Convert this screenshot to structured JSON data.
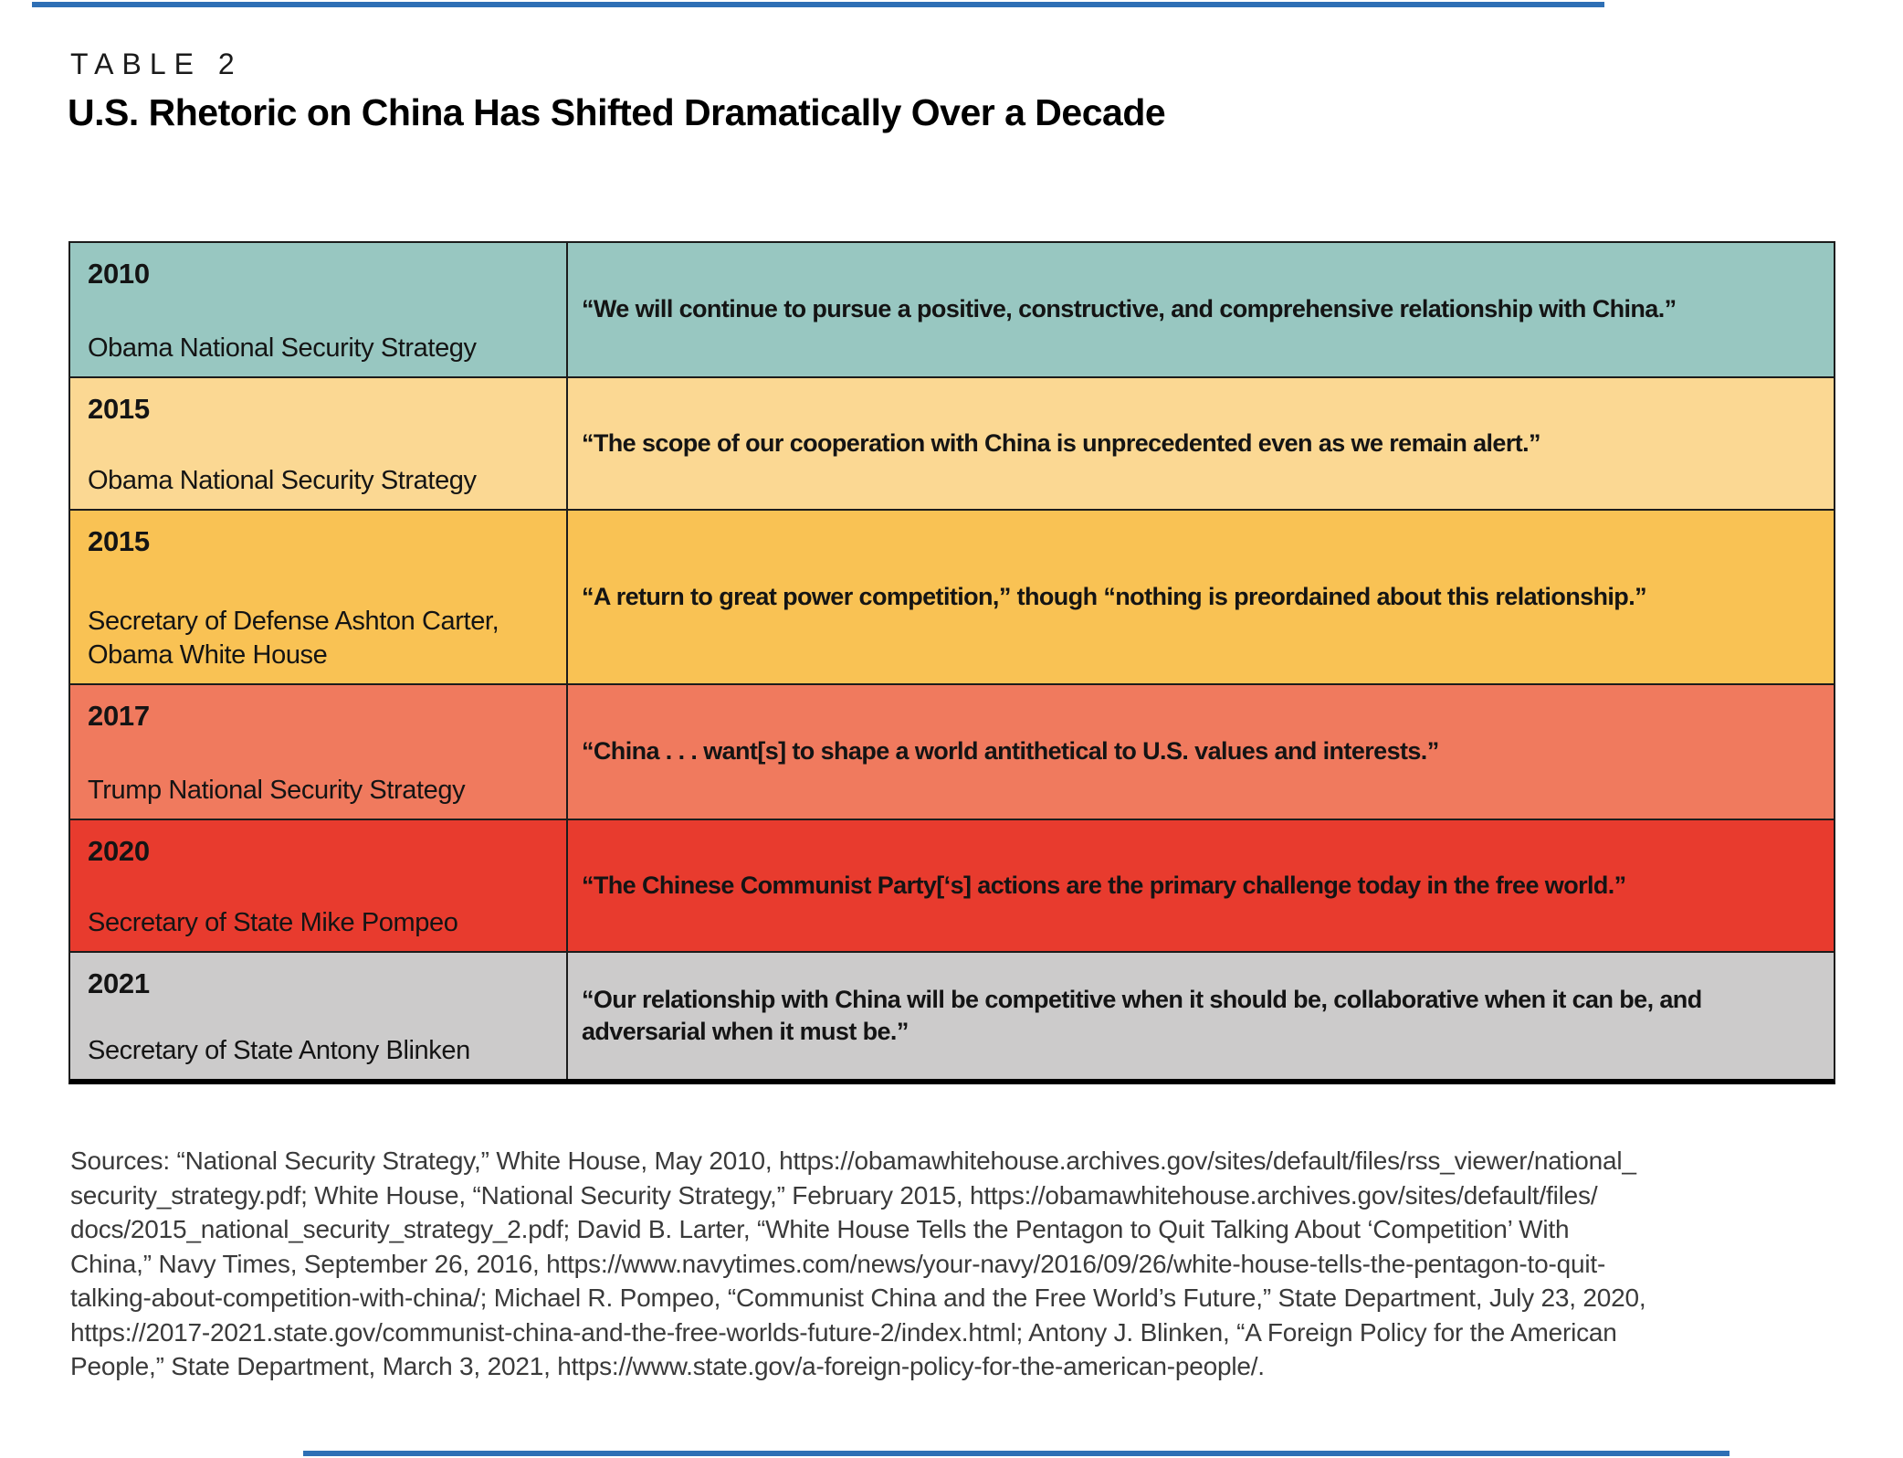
{
  "page": {
    "kicker": "TABLE 2",
    "title": "U.S. Rhetoric on China Has Shifted Dramatically Over a Decade"
  },
  "colors": {
    "rule_blue": "#2e6fb5",
    "border_dark": "#1c1c1c",
    "row_teal": "#98c7c1",
    "row_cream": "#fbd893",
    "row_amber": "#f9c254",
    "row_coral": "#f07a5e",
    "row_red": "#e83b2e",
    "row_gray": "#cccbcb"
  },
  "table": {
    "rows": [
      {
        "year": "2010",
        "source": "Obama National Security Strategy",
        "quote": "“We will continue to pursue a positive, constructive, and comprehensive relationship with China.”",
        "bg": "#98c7c1"
      },
      {
        "year": "2015",
        "source": "Obama National Security Strategy",
        "quote": "“The scope of our cooperation with China is unprecedented even as we remain alert.”",
        "bg": "#fbd893"
      },
      {
        "year": "2015",
        "source": "Secretary of Defense Ashton Carter, Obama White House",
        "quote": "“A return to great power competition,” though “nothing is preordained about this relationship.”",
        "bg": "#f9c254"
      },
      {
        "year": "2017",
        "source": "Trump National Security Strategy",
        "quote": "“China . . . want[s] to shape a world antithetical to U.S. values and interests.”",
        "bg": "#f07a5e"
      },
      {
        "year": "2020",
        "source": "Secretary of State Mike Pompeo",
        "quote": "“The Chinese Communist Party[‘s] actions are the primary challenge today in the free world.”",
        "bg": "#e83b2e"
      },
      {
        "year": "2021",
        "source": "Secretary of State Antony Blinken",
        "quote": "“Our relationship with China will be competitive when it should be, collaborative when it can be, and adversarial when it must be.”",
        "bg": "#cccbcb"
      }
    ]
  },
  "sources": {
    "lines": [
      "Sources: “National Security Strategy,” White House, May 2010, https://obamawhitehouse.archives.gov/sites/default/files/rss_viewer/national_",
      "security_strategy.pdf; White House, “National Security Strategy,” February 2015, https://obamawhitehouse.archives.gov/sites/default/files/",
      "docs/2015_national_security_strategy_2.pdf; David B. Larter, “White House Tells the Pentagon to Quit Talking About ‘Competition’ With",
      "China,” Navy Times, September 26, 2016, https://www.navytimes.com/news/your-navy/2016/09/26/white-house-tells-the-pentagon-to-quit-",
      "talking-about-competition-with-china/; Michael R. Pompeo, “Communist China and the Free World’s Future,” State Department, July 23, 2020,",
      "https://2017-2021.state.gov/communist-china-and-the-free-worlds-future-2/index.html; Antony J. Blinken, “A Foreign Policy for the American",
      "People,” State Department, March 3, 2021, https://www.state.gov/a-foreign-policy-for-the-american-people/."
    ]
  }
}
